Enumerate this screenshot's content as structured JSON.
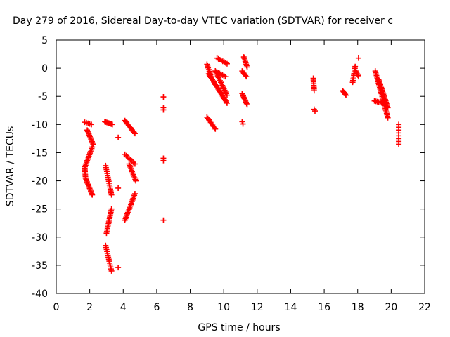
{
  "chart_data": {
    "type": "scatter",
    "title": "Day 279 of 2016, Sidereal Day-to-day VTEC variation (SDTVAR) for receiver c",
    "xlabel": "GPS time / hours",
    "ylabel": "SDTVAR / TECUs",
    "xlim": [
      0,
      22
    ],
    "ylim": [
      -40,
      5
    ],
    "xticks": [
      0,
      2,
      4,
      6,
      8,
      10,
      12,
      14,
      16,
      18,
      20,
      22
    ],
    "yticks": [
      5,
      0,
      -5,
      -10,
      -15,
      -20,
      -25,
      -30,
      -35,
      -40
    ],
    "grid": false,
    "marker": "+",
    "color": "#ff0000",
    "segments": [
      {
        "from": [
          1.7,
          -9.6
        ],
        "to": [
          2.1,
          -10.0
        ],
        "n": 5
      },
      {
        "from": [
          1.85,
          -11.0
        ],
        "to": [
          2.2,
          -13.5
        ],
        "n": 12
      },
      {
        "from": [
          2.15,
          -14.0
        ],
        "to": [
          1.72,
          -17.5
        ],
        "n": 14
      },
      {
        "from": [
          1.7,
          -17.5
        ],
        "to": [
          1.75,
          -19.5
        ],
        "n": 8
      },
      {
        "from": [
          1.75,
          -19.5
        ],
        "to": [
          2.15,
          -22.5
        ],
        "n": 14
      },
      {
        "from": [
          2.9,
          -9.5
        ],
        "to": [
          3.35,
          -10.0
        ],
        "n": 8
      },
      {
        "from": [
          2.95,
          -17.3
        ],
        "to": [
          3.3,
          -22.5
        ],
        "n": 16
      },
      {
        "from": [
          3.3,
          -25.0
        ],
        "to": [
          3.0,
          -29.3
        ],
        "n": 16
      },
      {
        "from": [
          2.95,
          -31.5
        ],
        "to": [
          3.3,
          -36.0
        ],
        "n": 14
      },
      {
        "from": [
          3.7,
          -12.3
        ],
        "to": [
          3.7,
          -12.3
        ],
        "n": 1
      },
      {
        "from": [
          3.7,
          -21.3
        ],
        "to": [
          3.7,
          -21.3
        ],
        "n": 1
      },
      {
        "from": [
          3.7,
          -35.4
        ],
        "to": [
          3.7,
          -35.4
        ],
        "n": 1
      },
      {
        "from": [
          4.1,
          -9.3
        ],
        "to": [
          4.7,
          -11.6
        ],
        "n": 12
      },
      {
        "from": [
          4.1,
          -15.3
        ],
        "to": [
          4.7,
          -17.0
        ],
        "n": 8
      },
      {
        "from": [
          4.35,
          -17.0
        ],
        "to": [
          4.75,
          -20.0
        ],
        "n": 12
      },
      {
        "from": [
          4.1,
          -27.0
        ],
        "to": [
          4.7,
          -22.3
        ],
        "n": 18
      },
      {
        "from": [
          6.4,
          -5.1
        ],
        "to": [
          6.4,
          -5.1
        ],
        "n": 1
      },
      {
        "from": [
          6.4,
          -7.0
        ],
        "to": [
          6.4,
          -7.4
        ],
        "n": 2
      },
      {
        "from": [
          6.4,
          -16.0
        ],
        "to": [
          6.4,
          -16.4
        ],
        "n": 2
      },
      {
        "from": [
          6.4,
          -27.0
        ],
        "to": [
          6.4,
          -27.0
        ],
        "n": 1
      },
      {
        "from": [
          9.0,
          -8.7
        ],
        "to": [
          9.5,
          -10.8
        ],
        "n": 10
      },
      {
        "from": [
          9.0,
          0.7
        ],
        "to": [
          9.25,
          -1.5
        ],
        "n": 8
      },
      {
        "from": [
          9.1,
          -1.0
        ],
        "to": [
          10.2,
          -6.2
        ],
        "n": 26
      },
      {
        "from": [
          9.5,
          -0.5
        ],
        "to": [
          10.2,
          -4.8
        ],
        "n": 16
      },
      {
        "from": [
          9.6,
          1.8
        ],
        "to": [
          10.2,
          0.8
        ],
        "n": 8
      },
      {
        "from": [
          9.5,
          -0.5
        ],
        "to": [
          10.1,
          -1.5
        ],
        "n": 8
      },
      {
        "from": [
          11.1,
          -9.5
        ],
        "to": [
          11.15,
          -9.9
        ],
        "n": 2
      },
      {
        "from": [
          11.1,
          -4.5
        ],
        "to": [
          11.4,
          -6.5
        ],
        "n": 10
      },
      {
        "from": [
          11.1,
          -0.5
        ],
        "to": [
          11.35,
          -1.5
        ],
        "n": 6
      },
      {
        "from": [
          11.2,
          2.0
        ],
        "to": [
          11.4,
          0.2
        ],
        "n": 8
      },
      {
        "from": [
          15.35,
          -1.8
        ],
        "to": [
          15.4,
          -4.0
        ],
        "n": 8
      },
      {
        "from": [
          15.4,
          -7.3
        ],
        "to": [
          15.45,
          -7.6
        ],
        "n": 2
      },
      {
        "from": [
          17.1,
          -4.0
        ],
        "to": [
          17.3,
          -4.8
        ],
        "n": 6
      },
      {
        "from": [
          17.7,
          -2.5
        ],
        "to": [
          17.85,
          0.3
        ],
        "n": 10
      },
      {
        "from": [
          17.9,
          -0.5
        ],
        "to": [
          18.05,
          -1.5
        ],
        "n": 5
      },
      {
        "from": [
          18.05,
          1.8
        ],
        "to": [
          18.05,
          1.8
        ],
        "n": 1
      },
      {
        "from": [
          19.05,
          -0.5
        ],
        "to": [
          19.8,
          -8.8
        ],
        "n": 32
      },
      {
        "from": [
          19.25,
          -2.0
        ],
        "to": [
          19.8,
          -7.0
        ],
        "n": 22
      },
      {
        "from": [
          19.0,
          -5.8
        ],
        "to": [
          19.6,
          -6.3
        ],
        "n": 8
      },
      {
        "from": [
          20.45,
          -10.0
        ],
        "to": [
          20.45,
          -13.5
        ],
        "n": 8
      }
    ]
  }
}
